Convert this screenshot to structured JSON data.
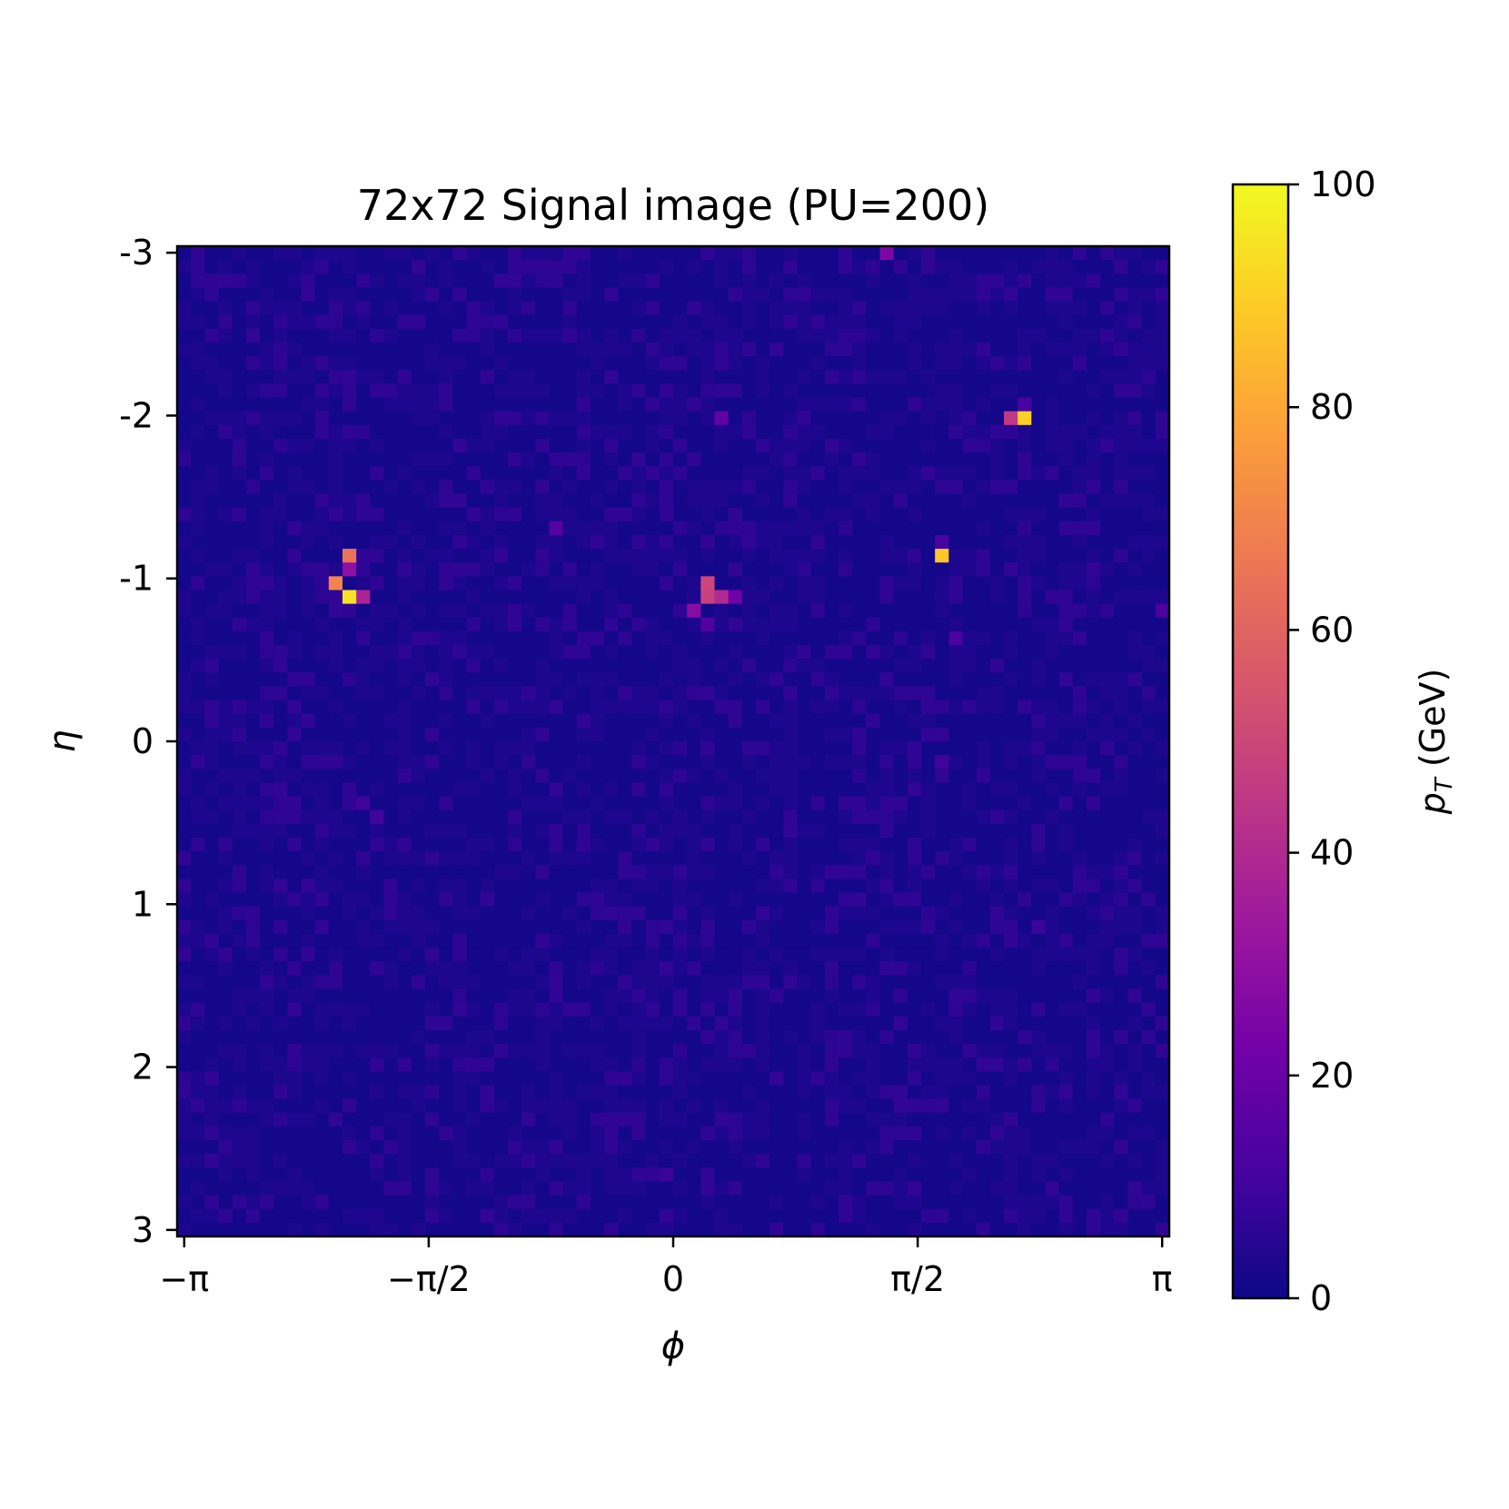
{
  "chart_data": {
    "type": "heatmap",
    "title": "72x72 Signal image (PU=200)",
    "xlabel": "ϕ",
    "ylabel": "η",
    "x_ticks": [
      {
        "value": -3.14159,
        "label": "−π"
      },
      {
        "value": -1.5708,
        "label": "−π/2"
      },
      {
        "value": 0,
        "label": "0"
      },
      {
        "value": 1.5708,
        "label": "π/2"
      },
      {
        "value": 3.14159,
        "label": "π"
      }
    ],
    "y_ticks": [
      {
        "value": -3,
        "label": "-3"
      },
      {
        "value": -2,
        "label": "-2"
      },
      {
        "value": -1,
        "label": "-1"
      },
      {
        "value": 0,
        "label": "0"
      },
      {
        "value": 1,
        "label": "1"
      },
      {
        "value": 2,
        "label": "2"
      },
      {
        "value": 3,
        "label": "3"
      }
    ],
    "xlim": [
      -3.187,
      3.187
    ],
    "ylim": [
      3.04,
      -3.04
    ],
    "grid": {
      "rows": 72,
      "cols": 72
    },
    "colormap": "plasma",
    "colormap_stops": [
      "#0d0887",
      "#46039f",
      "#7201a8",
      "#9c179e",
      "#bd3786",
      "#d8576b",
      "#ed7953",
      "#fb9f3a",
      "#fdca26",
      "#f0f921"
    ],
    "background_value": 1.5,
    "hot_cells": [
      {
        "row": 0,
        "col": 51,
        "value": 25
      },
      {
        "row": 12,
        "col": 60,
        "value": 45
      },
      {
        "row": 12,
        "col": 61,
        "value": 90
      },
      {
        "row": 11,
        "col": 61,
        "value": 12
      },
      {
        "row": 12,
        "col": 39,
        "value": 18
      },
      {
        "row": 20,
        "col": 27,
        "value": 15
      },
      {
        "row": 21,
        "col": 55,
        "value": 12
      },
      {
        "row": 22,
        "col": 55,
        "value": 88
      },
      {
        "row": 22,
        "col": 12,
        "value": 65
      },
      {
        "row": 23,
        "col": 12,
        "value": 30
      },
      {
        "row": 24,
        "col": 11,
        "value": 70
      },
      {
        "row": 25,
        "col": 12,
        "value": 95
      },
      {
        "row": 25,
        "col": 13,
        "value": 38
      },
      {
        "row": 24,
        "col": 38,
        "value": 50
      },
      {
        "row": 25,
        "col": 38,
        "value": 48
      },
      {
        "row": 25,
        "col": 39,
        "value": 40
      },
      {
        "row": 25,
        "col": 40,
        "value": 22
      },
      {
        "row": 26,
        "col": 37,
        "value": 28
      },
      {
        "row": 27,
        "col": 38,
        "value": 14
      },
      {
        "row": 28,
        "col": 56,
        "value": 12
      },
      {
        "row": 26,
        "col": 71,
        "value": 12
      },
      {
        "row": 37,
        "col": 55,
        "value": 10
      },
      {
        "row": 40,
        "col": 13,
        "value": 10
      },
      {
        "row": 41,
        "col": 14,
        "value": 10
      },
      {
        "row": 49,
        "col": 62,
        "value": 9
      },
      {
        "row": 67,
        "col": 35,
        "value": 9
      }
    ],
    "colorbar": {
      "label": "p_T (GeV)",
      "label_main": "p",
      "label_sub": "T",
      "label_unit": " (GeV)",
      "min": 0,
      "max": 100,
      "ticks": [
        {
          "value": 0,
          "label": "0"
        },
        {
          "value": 20,
          "label": "20"
        },
        {
          "value": 40,
          "label": "40"
        },
        {
          "value": 60,
          "label": "60"
        },
        {
          "value": 80,
          "label": "80"
        },
        {
          "value": 100,
          "label": "100"
        }
      ]
    }
  }
}
